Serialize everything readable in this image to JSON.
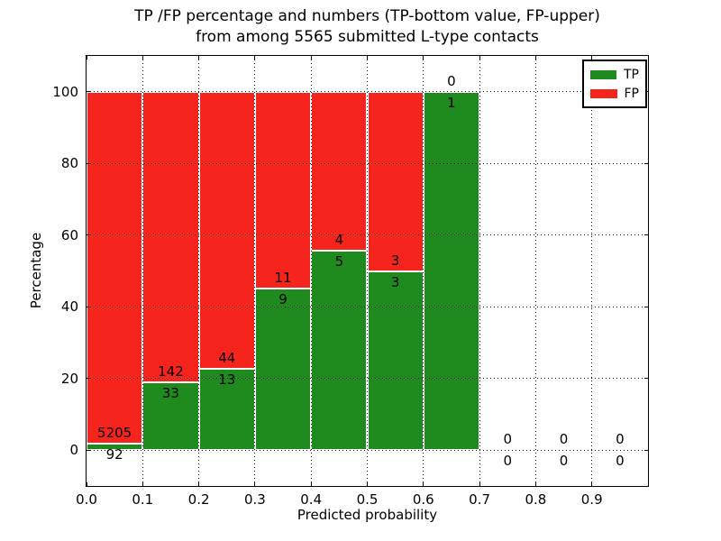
{
  "chart_data": {
    "type": "bar",
    "stacked": true,
    "normalized": "each bin scaled to 100%",
    "title": "TP /FP percentage and numbers (TP-bottom value, FP-upper) from among 5565 submitted L-type contacts",
    "title_lines": [
      "TP /FP percentage and numbers (TP-bottom value, FP-upper)",
      "from among 5565 submitted L-type contacts"
    ],
    "xlabel": "Predicted probability",
    "ylabel": "Percentage",
    "xlim": [
      0,
      1.0
    ],
    "ylim": [
      -10,
      110
    ],
    "bin_width": 0.1,
    "categories": [
      "0.0-0.1",
      "0.1-0.2",
      "0.2-0.3",
      "0.3-0.4",
      "0.4-0.5",
      "0.5-0.6",
      "0.6-0.7",
      "0.7-0.8",
      "0.8-0.9",
      "0.9-1.0"
    ],
    "series": [
      {
        "name": "TP",
        "color": "#1f8b1f",
        "counts": [
          92,
          33,
          13,
          9,
          5,
          3,
          1,
          0,
          0,
          0
        ]
      },
      {
        "name": "FP",
        "color": "#f5241d",
        "counts": [
          5205,
          142,
          44,
          11,
          4,
          3,
          0,
          0,
          0,
          0
        ]
      }
    ],
    "tp_percent_by_bin": [
      1.74,
      18.86,
      22.81,
      45.0,
      55.56,
      50.0,
      100.0,
      null,
      null,
      null
    ],
    "xtick_values": [
      0,
      0.1,
      0.2,
      0.3,
      0.4,
      0.5,
      0.6,
      0.7,
      0.8,
      0.9
    ],
    "xtick_labels": [
      "0.0",
      "0.1",
      "0.2",
      "0.3",
      "0.4",
      "0.5",
      "0.6",
      "0.7",
      "0.8",
      "0.9"
    ],
    "ytick_values": [
      0,
      20,
      40,
      60,
      80,
      100
    ],
    "ytick_labels": [
      "0",
      "20",
      "40",
      "60",
      "80",
      "100"
    ],
    "grid": true,
    "grid_linestyle": "dotted",
    "grid_color": "#000000",
    "bar_edge_color": "#ffffff",
    "label_color": "#000000",
    "background": "#ffffff",
    "legend": {
      "position": "upper right",
      "entries": [
        {
          "label": "TP",
          "color": "#1f8b1f"
        },
        {
          "label": "FP",
          "color": "#f5241d"
        }
      ]
    }
  }
}
